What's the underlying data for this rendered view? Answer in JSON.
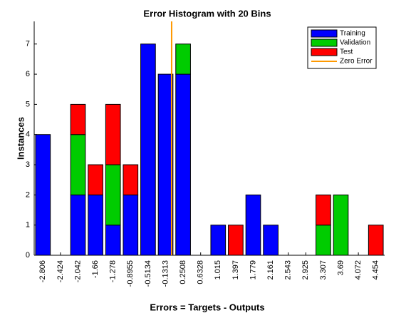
{
  "chart_data": {
    "type": "stacked_bar",
    "title": "Error Histogram with 20 Bins",
    "xlabel": "Errors = Targets - Outputs",
    "ylabel": "Instances",
    "categories": [
      "-2.806",
      "-2.424",
      "-2.042",
      "-1.66",
      "-1.278",
      "-0.8955",
      "-0.5134",
      "-0.1313",
      "0.2508",
      "0.6328",
      "1.015",
      "1.397",
      "1.779",
      "2.161",
      "2.543",
      "2.925",
      "3.307",
      "3.69",
      "4.072",
      "4.454"
    ],
    "series": [
      {
        "name": "Training",
        "color": "#0000ff",
        "values": [
          4,
          0,
          2,
          2,
          1,
          2,
          7,
          6,
          6,
          0,
          1,
          0,
          2,
          1,
          0,
          0,
          0,
          0,
          0,
          0
        ]
      },
      {
        "name": "Validation",
        "color": "#00cc00",
        "values": [
          0,
          0,
          2,
          0,
          2,
          0,
          0,
          0,
          1,
          0,
          0,
          0,
          0,
          0,
          0,
          0,
          1,
          2,
          0,
          0
        ]
      },
      {
        "name": "Test",
        "color": "#ff0000",
        "values": [
          0,
          0,
          1,
          1,
          2,
          1,
          0,
          0,
          0,
          0,
          0,
          1,
          0,
          0,
          0,
          0,
          1,
          0,
          0,
          1
        ]
      }
    ],
    "zero_line": {
      "name": "Zero Error",
      "color": "#ff9900",
      "x": 0
    },
    "ylim": [
      0,
      7.75
    ],
    "yticks": [
      0,
      1,
      2,
      3,
      4,
      5,
      6,
      7
    ]
  }
}
